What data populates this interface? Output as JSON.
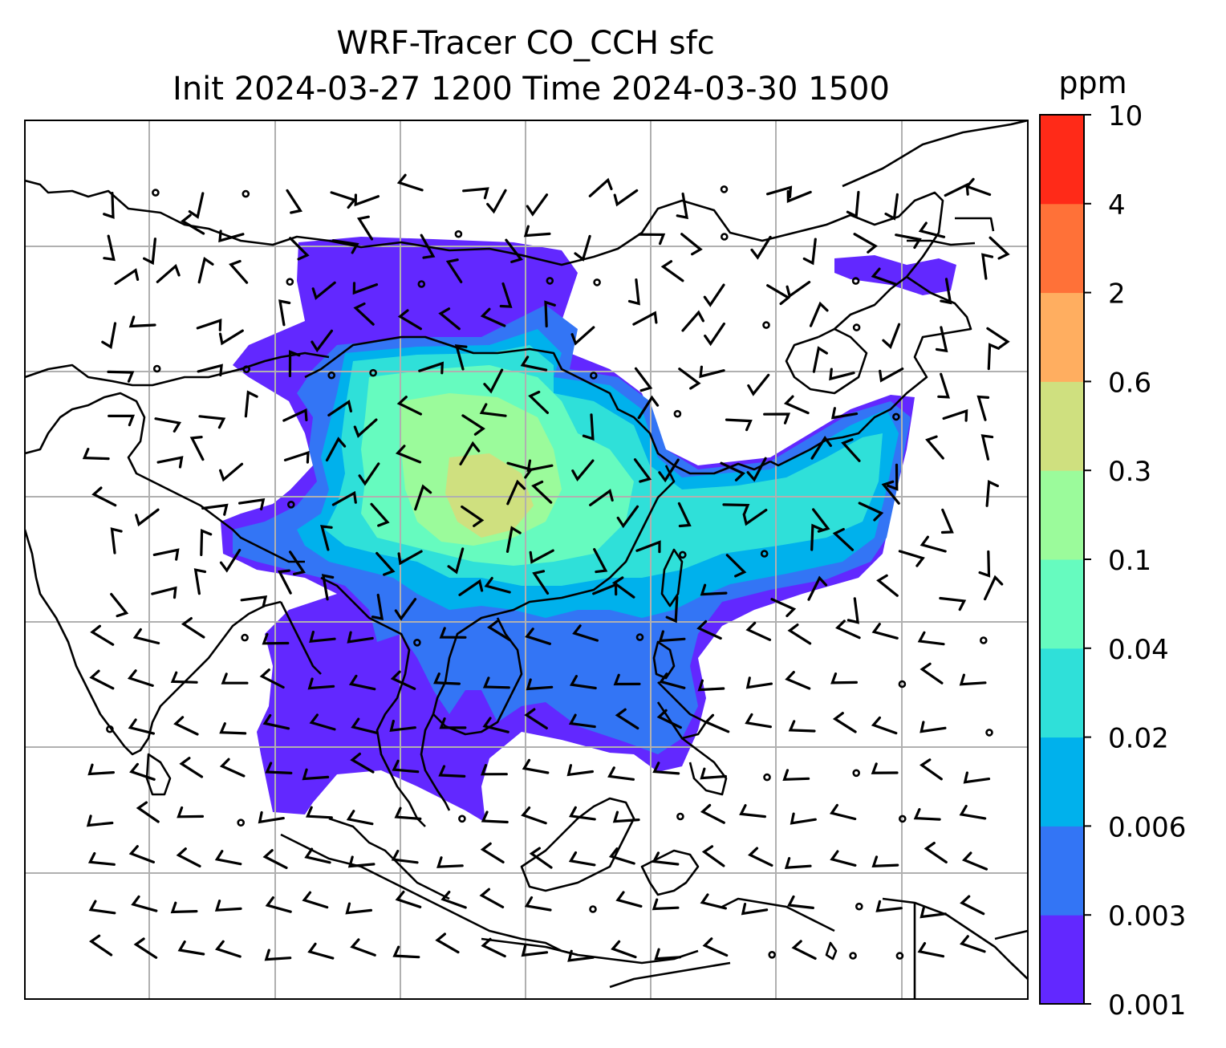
{
  "title": {
    "line1": "WRF-Tracer CO_CCH sfc",
    "line2": "Init 2024-03-27 1200 Time 2024-03-30 1500"
  },
  "colorbar": {
    "unit": "ppm",
    "ticks": [
      "10",
      "4",
      "2",
      "0.6",
      "0.3",
      "0.1",
      "0.04",
      "0.02",
      "0.006",
      "0.003",
      "0.001"
    ],
    "colors_bottom_to_top": [
      "#6228ff",
      "#3375f5",
      "#00b1ec",
      "#2fe0d9",
      "#66fbbf",
      "#9bfb9b",
      "#cfe07f",
      "#ffae60",
      "#ff7138",
      "#ff2a18"
    ]
  },
  "map": {
    "background": "#ffffff",
    "gridline_color": "#b0b0b0",
    "coastline_color": "#000000",
    "overlays": [
      "CO tracer filled contours",
      "wind barbs",
      "coastlines and borders",
      "lat/lon gridlines"
    ]
  }
}
